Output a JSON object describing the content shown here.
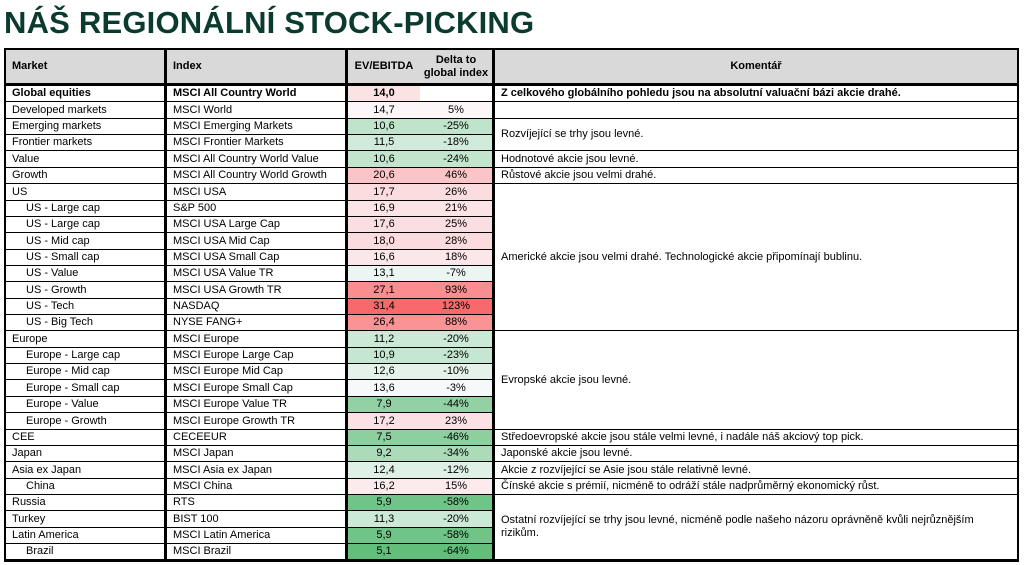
{
  "title": "NÁŠ REGIONÁLNÍ STOCK-PICKING",
  "colors": {
    "title": "#0b3b2e",
    "header_bg": "#d9d9d9",
    "high": "#f8696b",
    "low": "#63be7b",
    "neutral": "#fcfcff"
  },
  "headers": {
    "market": "Market",
    "index": "Index",
    "ev": "EV/EBITDA",
    "delta_line1": "Delta to",
    "delta_line2": "global index",
    "comment": "Komentář"
  },
  "rows": [
    {
      "market": "Global equities",
      "index": "MSCI All Country World",
      "ev": "14,0",
      "delta": "",
      "bold": true
    },
    {
      "market": "Developed markets",
      "index": "MSCI World",
      "ev": "14,7",
      "delta": "5%"
    },
    {
      "market": "Emerging markets",
      "index": "MSCI Emerging Markets",
      "ev": "10,6",
      "delta": "-25%"
    },
    {
      "market": "Frontier markets",
      "index": "MSCI Frontier Markets",
      "ev": "11,5",
      "delta": "-18%"
    },
    {
      "market": "Value",
      "index": "MSCI All Country World Value",
      "ev": "10,6",
      "delta": "-24%"
    },
    {
      "market": "Growth",
      "index": "MSCI All Country World Growth",
      "ev": "20,6",
      "delta": "46%"
    },
    {
      "market": "US",
      "index": "MSCI USA",
      "ev": "17,7",
      "delta": "26%"
    },
    {
      "market": "US - Large cap",
      "index": "S&P 500",
      "ev": "16,9",
      "delta": "21%",
      "indent": true
    },
    {
      "market": "US - Large cap",
      "index": "MSCI USA Large Cap",
      "ev": "17,6",
      "delta": "25%",
      "indent": true
    },
    {
      "market": "US - Mid cap",
      "index": "MSCI USA Mid Cap",
      "ev": "18,0",
      "delta": "28%",
      "indent": true
    },
    {
      "market": "US - Small cap",
      "index": "MSCI USA Small Cap",
      "ev": "16,6",
      "delta": "18%",
      "indent": true
    },
    {
      "market": "US - Value",
      "index": "MSCI USA Value TR",
      "ev": "13,1",
      "delta": "-7%",
      "indent": true
    },
    {
      "market": "US - Growth",
      "index": "MSCI USA Growth TR",
      "ev": "27,1",
      "delta": "93%",
      "indent": true
    },
    {
      "market": "US - Tech",
      "index": "NASDAQ",
      "ev": "31,4",
      "delta": "123%",
      "indent": true
    },
    {
      "market": "US - Big Tech",
      "index": "NYSE FANG+",
      "ev": "26,4",
      "delta": "88%",
      "indent": true
    },
    {
      "market": "Europe",
      "index": "MSCI Europe",
      "ev": "11,2",
      "delta": "-20%"
    },
    {
      "market": "Europe - Large cap",
      "index": "MSCI Europe Large Cap",
      "ev": "10,9",
      "delta": "-23%",
      "indent": true
    },
    {
      "market": "Europe - Mid cap",
      "index": "MSCI Europe Mid Cap",
      "ev": "12,6",
      "delta": "-10%",
      "indent": true
    },
    {
      "market": "Europe - Small cap",
      "index": "MSCI Europe Small Cap",
      "ev": "13,6",
      "delta": "-3%",
      "indent": true
    },
    {
      "market": "Europe - Value",
      "index": "MSCI Europe Value TR",
      "ev": "7,9",
      "delta": "-44%",
      "indent": true
    },
    {
      "market": "Europe - Growth",
      "index": "MSCI Europe Growth TR",
      "ev": "17,2",
      "delta": "23%",
      "indent": true
    },
    {
      "market": "CEE",
      "index": "CECEEUR",
      "ev": "7,5",
      "delta": "-46%"
    },
    {
      "market": "Japan",
      "index": "MSCI Japan",
      "ev": "9,2",
      "delta": "-34%"
    },
    {
      "market": "Asia ex Japan",
      "index": "MSCI Asia ex Japan",
      "ev": "12,4",
      "delta": "-12%"
    },
    {
      "market": "China",
      "index": "MSCI China",
      "ev": "16,2",
      "delta": "15%",
      "indent": true
    },
    {
      "market": "Russia",
      "index": "RTS",
      "ev": "5,9",
      "delta": "-58%"
    },
    {
      "market": "Turkey",
      "index": "BIST 100",
      "ev": "11,3",
      "delta": "-20%"
    },
    {
      "market": "Latin America",
      "index": "MSCI Latin America",
      "ev": "5,9",
      "delta": "-58%"
    },
    {
      "market": "Brazil",
      "index": "MSCI Brazil",
      "ev": "5,1",
      "delta": "-64%",
      "indent": true
    }
  ],
  "comments": [
    {
      "start": 0,
      "end": 0,
      "text": "Z celkového globálního pohledu jsou na absolutní valuační bázi akcie drahé.",
      "bold": true
    },
    {
      "start": 1,
      "end": 1,
      "text": ""
    },
    {
      "start": 2,
      "end": 3,
      "text": "Rozvíjející se trhy jsou levné."
    },
    {
      "start": 4,
      "end": 4,
      "text": "Hodnotové akcie jsou levné."
    },
    {
      "start": 5,
      "end": 5,
      "text": "Růstové akcie jsou velmi drahé."
    },
    {
      "start": 6,
      "end": 14,
      "text": "Americké akcie jsou velmi drahé. Technologické akcie připomínají bublinu."
    },
    {
      "start": 15,
      "end": 20,
      "text": "Evropské akcie jsou levné."
    },
    {
      "start": 21,
      "end": 21,
      "text": "Středoevropské akcie jsou stále velmi levné, i nadále náš akciový top pick."
    },
    {
      "start": 22,
      "end": 22,
      "text": "Japonské akcie jsou levné."
    },
    {
      "start": 23,
      "end": 23,
      "text": "Akcie z rozvíjející se Asie jsou stále relativně levné."
    },
    {
      "start": 24,
      "end": 24,
      "text": "Čínské akcie s prémií, nicméně to odráží stále nadprůměrný ekonomický růst."
    },
    {
      "start": 25,
      "end": 28,
      "text": "Ostatní rozvíjející se trhy jsou levné, nicméně podle našeho názoru oprávněně kvůli nejrůznějším rizikům."
    }
  ]
}
